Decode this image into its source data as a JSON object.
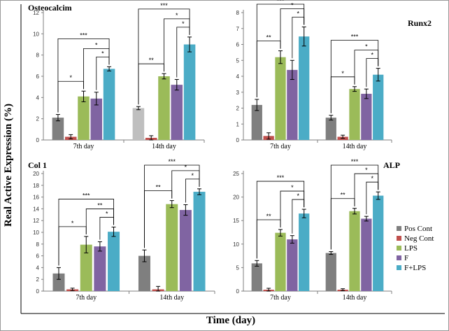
{
  "chart_data": {
    "type": "bar",
    "xlabel": "Time (day)",
    "ylabel": "Real Active Expression (%)",
    "legend": {
      "placement": "right",
      "items": [
        {
          "name": "Pos Cont",
          "color": "#7f7f7f"
        },
        {
          "name": "Neg Cont",
          "color": "#c0504d"
        },
        {
          "name": "LPS",
          "color": "#9bbb59"
        },
        {
          "name": "F",
          "color": "#8064a2"
        },
        {
          "name": "F+LPS",
          "color": "#4bacc6"
        }
      ]
    },
    "panels": [
      {
        "title": "Osteocalcim",
        "ylim": [
          0,
          12
        ],
        "yticks": [
          0,
          2,
          4,
          6,
          8,
          10,
          12
        ],
        "categories": [
          "7th day",
          "14th day"
        ],
        "series": [
          {
            "name": "Pos Cont",
            "values": [
              2.1,
              3.0
            ],
            "errors": [
              0.3,
              0.15
            ]
          },
          {
            "name": "Neg Cont",
            "values": [
              0.3,
              0.2
            ],
            "errors": [
              0.2,
              0.2
            ]
          },
          {
            "name": "LPS",
            "values": [
              4.1,
              6.0
            ],
            "errors": [
              0.5,
              0.25
            ]
          },
          {
            "name": "F",
            "values": [
              3.9,
              5.2
            ],
            "errors": [
              0.6,
              0.5
            ]
          },
          {
            "name": "F+LPS",
            "values": [
              6.7,
              9.0
            ],
            "errors": [
              0.2,
              0.7
            ]
          }
        ],
        "brackets": [
          {
            "day": 0,
            "from": 0,
            "to": 2,
            "label": "*"
          },
          {
            "day": 0,
            "from": 3,
            "to": 4,
            "label": "*"
          },
          {
            "day": 0,
            "from": 2,
            "to": 4,
            "label": "*"
          },
          {
            "day": 0,
            "from": 0,
            "to": 4,
            "label": "***"
          },
          {
            "day": 1,
            "from": 0,
            "to": 2,
            "label": "**"
          },
          {
            "day": 1,
            "from": 3,
            "to": 4,
            "label": "*"
          },
          {
            "day": 1,
            "from": 2,
            "to": 4,
            "label": "*"
          },
          {
            "day": 1,
            "from": 0,
            "to": 4,
            "label": "***"
          }
        ]
      },
      {
        "title": "Runx2",
        "ylim": [
          0,
          8
        ],
        "yticks": [
          0,
          1,
          2,
          3,
          4,
          5,
          6,
          7,
          8
        ],
        "categories": [
          "7th day",
          "14th day"
        ],
        "series": [
          {
            "name": "Pos Cont",
            "values": [
              2.2,
              1.4
            ],
            "errors": [
              0.35,
              0.15
            ]
          },
          {
            "name": "Neg Cont",
            "values": [
              0.25,
              0.2
            ],
            "errors": [
              0.2,
              0.1
            ]
          },
          {
            "name": "LPS",
            "values": [
              5.2,
              3.2
            ],
            "errors": [
              0.4,
              0.15
            ]
          },
          {
            "name": "F",
            "values": [
              4.4,
              2.9
            ],
            "errors": [
              0.6,
              0.3
            ]
          },
          {
            "name": "F+LPS",
            "values": [
              6.5,
              4.1
            ],
            "errors": [
              0.6,
              0.4
            ]
          }
        ],
        "brackets": [
          {
            "day": 0,
            "from": 0,
            "to": 2,
            "label": "**"
          },
          {
            "day": 0,
            "from": 3,
            "to": 4,
            "label": "*"
          },
          {
            "day": 0,
            "from": 2,
            "to": 4,
            "label": "*"
          },
          {
            "day": 0,
            "from": 0,
            "to": 4,
            "label": "***"
          },
          {
            "day": 1,
            "from": 0,
            "to": 2,
            "label": "*"
          },
          {
            "day": 1,
            "from": 3,
            "to": 4,
            "label": "*"
          },
          {
            "day": 1,
            "from": 2,
            "to": 4,
            "label": "*"
          },
          {
            "day": 1,
            "from": 0,
            "to": 4,
            "label": "***"
          }
        ]
      },
      {
        "title": "Col 1",
        "ylim": [
          0,
          20
        ],
        "yticks": [
          0,
          2,
          4,
          6,
          8,
          10,
          12,
          14,
          16,
          18,
          20
        ],
        "categories": [
          "7th day",
          "14th day"
        ],
        "series": [
          {
            "name": "Pos Cont",
            "values": [
              3.0,
              6.0
            ],
            "errors": [
              1.0,
              1.0
            ]
          },
          {
            "name": "Neg Cont",
            "values": [
              0.3,
              0.3
            ],
            "errors": [
              0.2,
              0.5
            ]
          },
          {
            "name": "LPS",
            "values": [
              7.9,
              14.8
            ],
            "errors": [
              1.4,
              0.6
            ]
          },
          {
            "name": "F",
            "values": [
              7.6,
              13.8
            ],
            "errors": [
              0.8,
              0.9
            ]
          },
          {
            "name": "F+LPS",
            "values": [
              10.1,
              16.9
            ],
            "errors": [
              0.8,
              0.5
            ]
          }
        ],
        "brackets": [
          {
            "day": 0,
            "from": 0,
            "to": 2,
            "label": "*"
          },
          {
            "day": 0,
            "from": 3,
            "to": 4,
            "label": "*"
          },
          {
            "day": 0,
            "from": 2,
            "to": 4,
            "label": "**"
          },
          {
            "day": 0,
            "from": 0,
            "to": 4,
            "label": "***"
          },
          {
            "day": 1,
            "from": 0,
            "to": 2,
            "label": "**"
          },
          {
            "day": 1,
            "from": 3,
            "to": 4,
            "label": "*"
          },
          {
            "day": 1,
            "from": 2,
            "to": 4,
            "label": "*"
          },
          {
            "day": 1,
            "from": 0,
            "to": 4,
            "label": "***"
          }
        ]
      },
      {
        "title": "ALP",
        "ylim": [
          0,
          25
        ],
        "yticks": [
          0,
          5,
          10,
          15,
          20,
          25
        ],
        "categories": [
          "7th day",
          "14th day"
        ],
        "series": [
          {
            "name": "Pos Cont",
            "values": [
              5.9,
              8.1
            ],
            "errors": [
              0.6,
              0.3
            ]
          },
          {
            "name": "Neg Cont",
            "values": [
              0.3,
              0.3
            ],
            "errors": [
              0.3,
              0.2
            ]
          },
          {
            "name": "LPS",
            "values": [
              12.4,
              17.0
            ],
            "errors": [
              0.7,
              0.6
            ]
          },
          {
            "name": "F",
            "values": [
              11.0,
              15.4
            ],
            "errors": [
              0.8,
              0.5
            ]
          },
          {
            "name": "F+LPS",
            "values": [
              16.5,
              20.3
            ],
            "errors": [
              0.9,
              0.8
            ]
          }
        ],
        "brackets": [
          {
            "day": 0,
            "from": 0,
            "to": 2,
            "label": "**"
          },
          {
            "day": 0,
            "from": 3,
            "to": 4,
            "label": "*"
          },
          {
            "day": 0,
            "from": 2,
            "to": 4,
            "label": "*"
          },
          {
            "day": 0,
            "from": 0,
            "to": 4,
            "label": "***"
          },
          {
            "day": 1,
            "from": 0,
            "to": 2,
            "label": "**"
          },
          {
            "day": 1,
            "from": 3,
            "to": 4,
            "label": "*"
          },
          {
            "day": 1,
            "from": 2,
            "to": 4,
            "label": "*"
          },
          {
            "day": 1,
            "from": 0,
            "to": 4,
            "label": "***"
          }
        ]
      }
    ]
  }
}
